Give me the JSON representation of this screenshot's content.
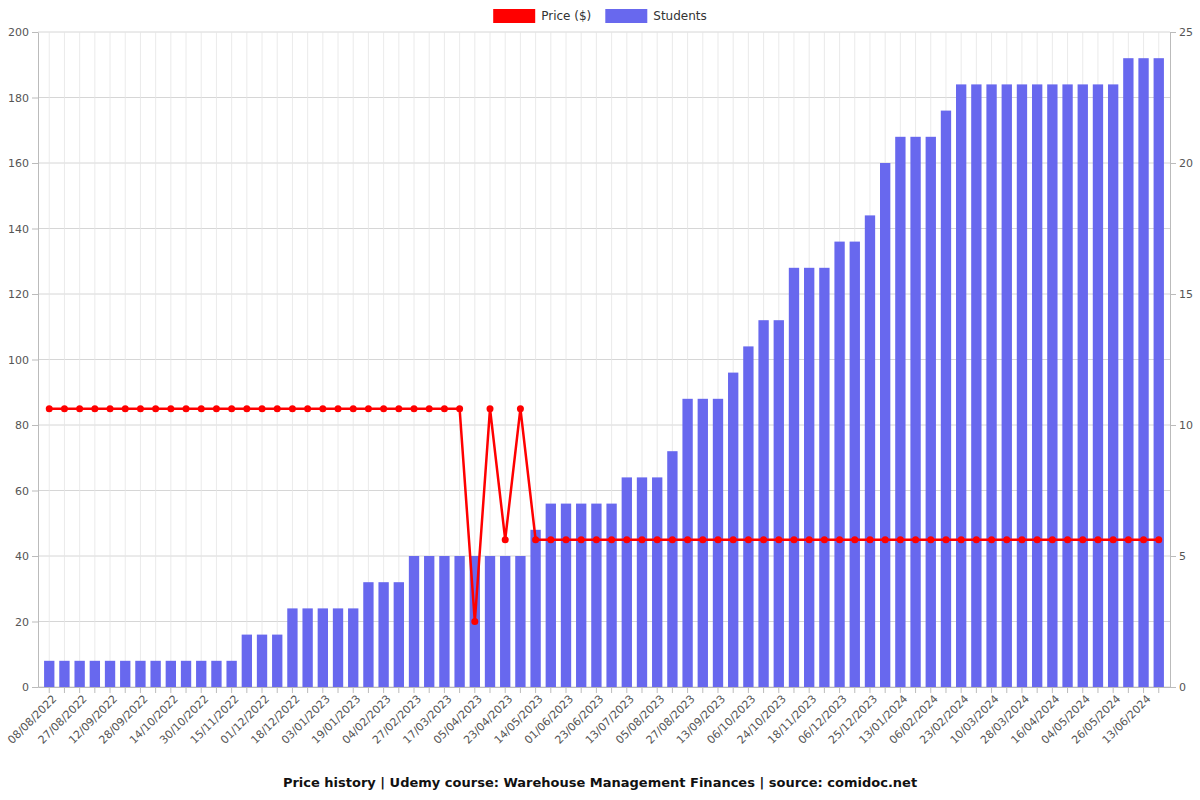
{
  "chart_data": {
    "type": "bar",
    "title": "Price history | Udemy course: Warehouse Management Finances | source: comidoc.net",
    "categories": [
      "08/08/2022",
      null,
      "27/08/2022",
      null,
      "12/09/2022",
      null,
      "28/09/2022",
      null,
      "14/10/2022",
      null,
      "30/10/2022",
      null,
      "15/11/2022",
      null,
      "01/12/2022",
      null,
      "18/12/2022",
      null,
      "03/01/2023",
      null,
      "19/01/2023",
      null,
      "04/02/2023",
      null,
      "27/02/2023",
      null,
      "17/03/2023",
      null,
      "05/04/2023",
      null,
      "23/04/2023",
      null,
      "14/05/2023",
      null,
      "01/06/2023",
      null,
      "23/06/2023",
      null,
      "13/07/2023",
      null,
      "05/08/2023",
      null,
      "27/08/2023",
      null,
      "13/09/2023",
      null,
      "06/10/2023",
      null,
      "24/10/2023",
      null,
      "18/11/2023",
      null,
      "06/12/2023",
      null,
      "25/12/2023",
      null,
      "13/01/2024",
      null,
      "06/02/2024",
      null,
      "23/02/2024",
      null,
      "10/03/2024",
      null,
      "28/03/2024",
      null,
      "16/04/2024",
      null,
      "04/05/2024",
      null,
      "26/05/2024",
      null,
      "13/06/2024",
      null
    ],
    "series": [
      {
        "name": "Price ($)",
        "type": "line",
        "color": "#ff0000",
        "marker": "circle",
        "values": [
          85,
          85,
          85,
          85,
          85,
          85,
          85,
          85,
          85,
          85,
          85,
          85,
          85,
          85,
          85,
          85,
          85,
          85,
          85,
          85,
          85,
          85,
          85,
          85,
          85,
          85,
          85,
          85,
          20,
          85,
          45,
          85,
          45,
          45,
          45,
          45,
          45,
          45,
          45,
          45,
          45,
          45,
          45,
          45,
          45,
          45,
          45,
          45,
          45,
          45,
          45,
          45,
          45,
          45,
          45,
          45,
          45,
          45,
          45,
          45,
          45,
          45,
          45,
          45,
          45,
          45,
          45,
          45,
          45,
          45,
          45,
          45,
          45,
          45
        ]
      },
      {
        "name": "Students",
        "type": "bar",
        "color": "#6868ee",
        "axis": "y2",
        "values": [
          1,
          1,
          1,
          1,
          1,
          1,
          1,
          1,
          1,
          1,
          1,
          1,
          1,
          2,
          2,
          2,
          3,
          3,
          3,
          3,
          3,
          4,
          4,
          4,
          5,
          5,
          5,
          5,
          5,
          5,
          5,
          5,
          6,
          7,
          7,
          7,
          7,
          7,
          8,
          8,
          8,
          9,
          11,
          11,
          11,
          12,
          13,
          14,
          14,
          16,
          16,
          16,
          17,
          17,
          18,
          20,
          21,
          21,
          21,
          22,
          23,
          23,
          23,
          23,
          23,
          23,
          23,
          23,
          23,
          23,
          23,
          24,
          24,
          24
        ]
      }
    ],
    "ylim": [
      0,
      200
    ],
    "yticks": [
      0,
      20,
      40,
      60,
      80,
      100,
      120,
      140,
      160,
      180,
      200
    ],
    "y2lim": [
      0,
      25
    ],
    "y2ticks": [
      0,
      5,
      10,
      15,
      20,
      25
    ],
    "grid": true,
    "legend": "top"
  }
}
